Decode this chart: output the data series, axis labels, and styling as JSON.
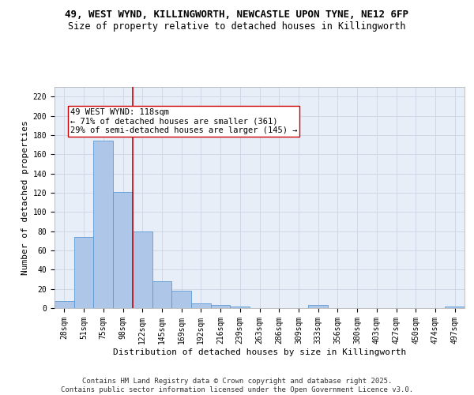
{
  "title_line1": "49, WEST WYND, KILLINGWORTH, NEWCASTLE UPON TYNE, NE12 6FP",
  "title_line2": "Size of property relative to detached houses in Killingworth",
  "xlabel": "Distribution of detached houses by size in Killingworth",
  "ylabel": "Number of detached properties",
  "bar_labels": [
    "28sqm",
    "51sqm",
    "75sqm",
    "98sqm",
    "122sqm",
    "145sqm",
    "169sqm",
    "192sqm",
    "216sqm",
    "239sqm",
    "263sqm",
    "286sqm",
    "309sqm",
    "333sqm",
    "356sqm",
    "380sqm",
    "403sqm",
    "427sqm",
    "450sqm",
    "474sqm",
    "497sqm"
  ],
  "bar_values": [
    7,
    74,
    174,
    121,
    80,
    28,
    18,
    5,
    3,
    2,
    0,
    0,
    0,
    3,
    0,
    0,
    0,
    0,
    0,
    0,
    2
  ],
  "bar_color": "#aec6e8",
  "bar_edge_color": "#5b9bd5",
  "vline_x_index": 3.5,
  "vline_color": "#cc0000",
  "annotation_text": "49 WEST WYND: 118sqm\n← 71% of detached houses are smaller (361)\n29% of semi-detached houses are larger (145) →",
  "annotation_box_color": "#ffffff",
  "annotation_box_edge": "#cc0000",
  "ylim": [
    0,
    230
  ],
  "yticks": [
    0,
    20,
    40,
    60,
    80,
    100,
    120,
    140,
    160,
    180,
    200,
    220
  ],
  "grid_color": "#d0d8e8",
  "background_color": "#e8eef8",
  "footer_text": "Contains HM Land Registry data © Crown copyright and database right 2025.\nContains public sector information licensed under the Open Government Licence v3.0.",
  "title_fontsize": 9,
  "subtitle_fontsize": 8.5,
  "axis_label_fontsize": 8,
  "tick_fontsize": 7,
  "annotation_fontsize": 7.5,
  "footer_fontsize": 6.5
}
